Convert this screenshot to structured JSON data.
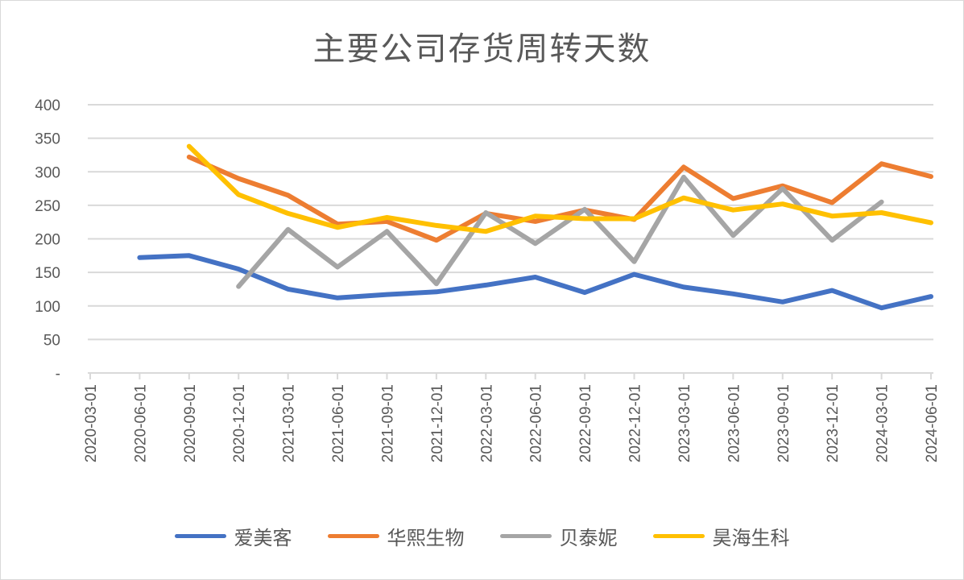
{
  "chart_data": {
    "type": "line",
    "title": "主要公司存货周转天数",
    "x": [
      "2020-03-01",
      "2020-06-01",
      "2020-09-01",
      "2020-12-01",
      "2021-03-01",
      "2021-06-01",
      "2021-09-01",
      "2021-12-01",
      "2022-03-01",
      "2022-06-01",
      "2022-09-01",
      "2022-12-01",
      "2023-03-01",
      "2023-06-01",
      "2023-09-01",
      "2023-12-01",
      "2024-03-01",
      "2024-06-01"
    ],
    "y_ticks": [
      "-",
      "50",
      "100",
      "150",
      "200",
      "250",
      "300",
      "350",
      "400"
    ],
    "ylim": [
      0,
      400
    ],
    "grid": true,
    "legend_position": "bottom",
    "series": [
      {
        "name": "爱美客",
        "color": "#4472C4",
        "values": [
          null,
          172,
          175,
          155,
          125,
          112,
          117,
          121,
          131,
          143,
          120,
          147,
          128,
          118,
          106,
          123,
          97,
          114
        ]
      },
      {
        "name": "华熙生物",
        "color": "#ED7D31",
        "values": [
          null,
          null,
          322,
          290,
          265,
          222,
          226,
          198,
          238,
          226,
          243,
          229,
          307,
          260,
          279,
          254,
          312,
          293
        ]
      },
      {
        "name": "贝泰妮",
        "color": "#A5A5A5",
        "values": [
          null,
          null,
          null,
          129,
          214,
          158,
          211,
          133,
          239,
          193,
          244,
          166,
          292,
          205,
          275,
          198,
          255,
          null
        ]
      },
      {
        "name": "昊海生科",
        "color": "#FFC000",
        "values": [
          null,
          null,
          338,
          266,
          238,
          217,
          232,
          220,
          211,
          234,
          230,
          230,
          261,
          243,
          252,
          234,
          239,
          224
        ]
      }
    ]
  }
}
